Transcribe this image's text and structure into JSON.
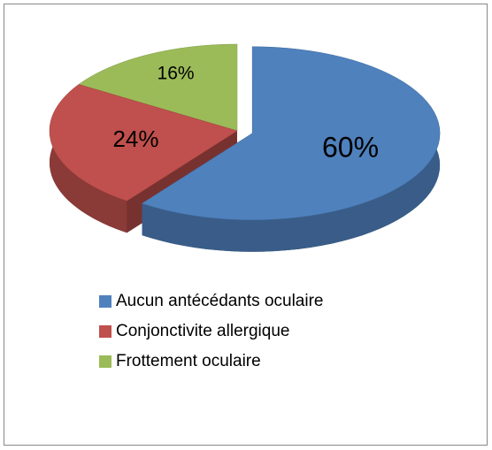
{
  "chart_data": {
    "type": "pie",
    "categories": [
      "Aucun antécédants oculaire",
      "Conjonctivite allergique",
      "Frottement oculaire"
    ],
    "values": [
      60,
      24,
      16
    ],
    "value_labels": [
      "60%",
      "24%",
      "16%"
    ],
    "colors": [
      "#4f81bd",
      "#c0504d",
      "#9bbb59"
    ],
    "legend": "bottom"
  }
}
